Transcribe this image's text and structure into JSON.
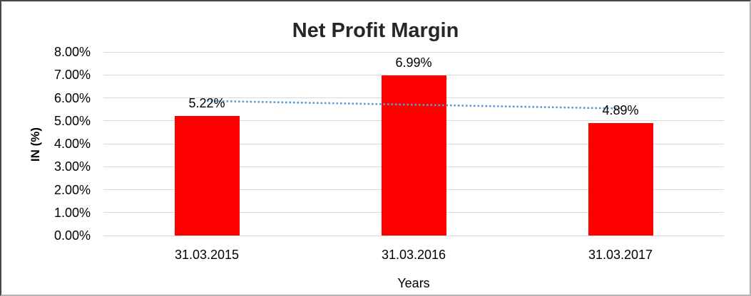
{
  "chart_data": {
    "type": "bar",
    "title": "Net Profit Margin",
    "categories": [
      "31.03.2015",
      "31.03.2016",
      "31.03.2017"
    ],
    "series": [
      {
        "name": "Net Profit Margin",
        "color": "#FF0000",
        "values": [
          5.22,
          6.99,
          4.89
        ]
      }
    ],
    "data_labels": [
      "5.22%",
      "6.99%",
      "4.89%"
    ],
    "xlabel": "Years",
    "ylabel": "IN (%)",
    "ylim": [
      0,
      8
    ],
    "yticks": [
      {
        "v": 8,
        "label": "8.00%"
      },
      {
        "v": 7,
        "label": "7.00%"
      },
      {
        "v": 6,
        "label": "6.00%"
      },
      {
        "v": 5,
        "label": "5.00%"
      },
      {
        "v": 4,
        "label": "4.00%"
      },
      {
        "v": 3,
        "label": "3.00%"
      },
      {
        "v": 2,
        "label": "2.00%"
      },
      {
        "v": 1,
        "label": "1.00%"
      },
      {
        "v": 0,
        "label": "0.00%"
      }
    ],
    "grid": true,
    "gridline_color": "#D9D9D9",
    "legend": "none",
    "trendline": {
      "type": "linear",
      "style": "dotted",
      "color": "#5B9BD5"
    }
  }
}
